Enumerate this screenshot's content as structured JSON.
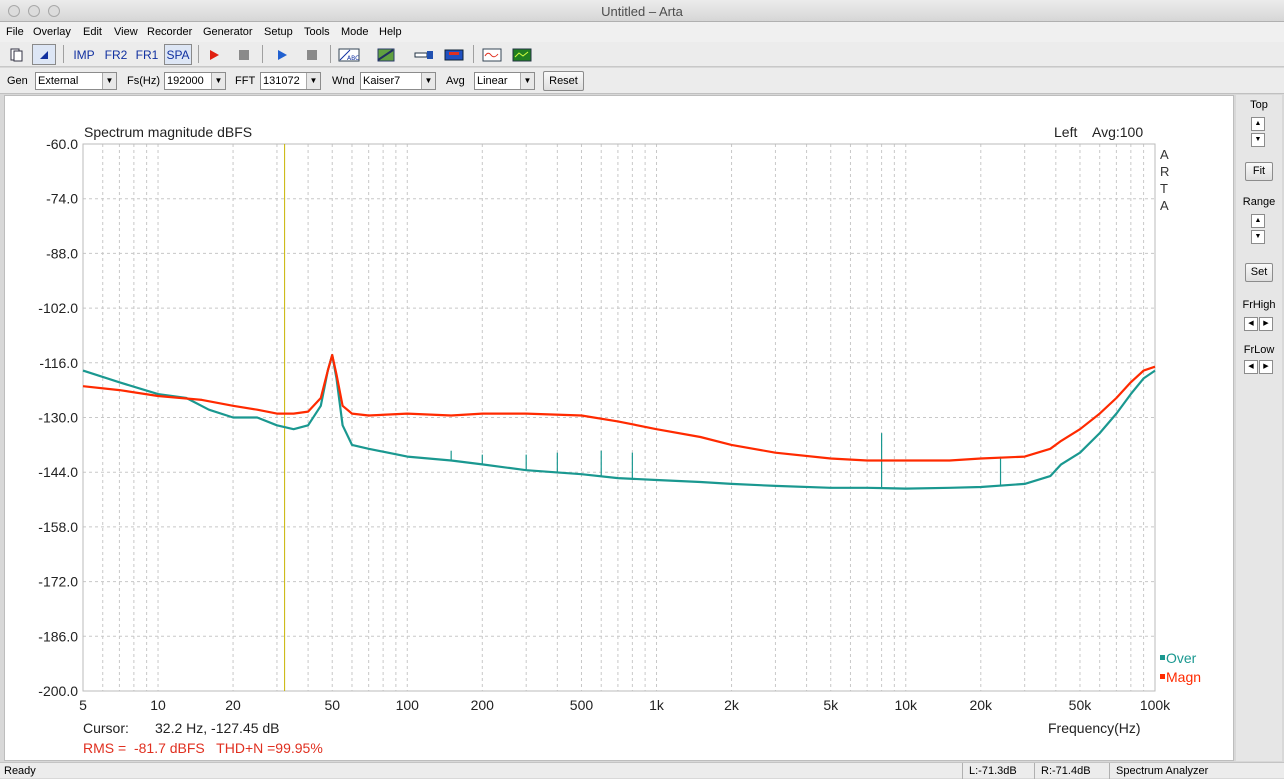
{
  "window": {
    "title": "Untitled – Arta"
  },
  "menu": [
    "File",
    "Overlay",
    "Edit",
    "View",
    "Recorder",
    "Generator",
    "Setup",
    "Tools",
    "Mode",
    "Help"
  ],
  "toolbar": {
    "imp": "IMP",
    "fr2": "FR2",
    "fr1": "FR1",
    "spa": "SPA"
  },
  "controls": {
    "gen_label": "Gen",
    "gen_value": "External",
    "fs_label": "Fs(Hz)",
    "fs_value": "192000",
    "fft_label": "FFT",
    "fft_value": "131072",
    "wnd_label": "Wnd",
    "wnd_value": "Kaiser7",
    "avg_label": "Avg",
    "avg_value": "Linear",
    "reset_label": "Reset"
  },
  "side": {
    "top": "Top",
    "fit": "Fit",
    "range": "Range",
    "set": "Set",
    "frhigh": "FrHigh",
    "frlow": "FrLow"
  },
  "plot": {
    "arta": [
      "A",
      "R",
      "T",
      "A"
    ],
    "cursor_label": "Cursor:",
    "cursor_value": "32.2 Hz, -127.45 dB",
    "rms_text": "RMS =  -81.7 dBFS   THD+N =99.95%",
    "cursor_hz": 32.2
  },
  "status": {
    "ready": "Ready",
    "left": "L:-71.3dB",
    "right": "R:-71.4dB",
    "mode": "Spectrum Analyzer"
  },
  "colors": {
    "magn": "#ff2a00",
    "over": "#1a9890",
    "cursor": "#c8b400",
    "grid": "#c8c8c8",
    "rms": "#e03020"
  },
  "chart_data": {
    "type": "line",
    "title": "Spectrum magnitude dBFS",
    "channel": "Left",
    "avg_text": "Avg:100",
    "xlabel": "Frequency(Hz)",
    "x_scale": "log",
    "xlim": [
      5,
      100000
    ],
    "ylim": [
      -200,
      -60
    ],
    "x_ticks": [
      5,
      10,
      20,
      50,
      100,
      200,
      500,
      1000,
      2000,
      5000,
      10000,
      20000,
      50000,
      100000
    ],
    "x_tick_labels": [
      "5",
      "10",
      "20",
      "50",
      "100",
      "200",
      "500",
      "1k",
      "2k",
      "5k",
      "10k",
      "20k",
      "50k",
      "100k"
    ],
    "y_ticks": [
      -60,
      -74,
      -88,
      -102,
      -116,
      -130,
      -144,
      -158,
      -172,
      -186,
      -200
    ],
    "y_tick_labels": [
      "-60.0",
      "-74.0",
      "-88.0",
      "-102.0",
      "-116.0",
      "-130.0",
      "-144.0",
      "-158.0",
      "-172.0",
      "-186.0",
      "-200.0"
    ],
    "grid": true,
    "legend_position": "bottom-right",
    "series": [
      {
        "name": "Over",
        "color": "#1a9890",
        "x": [
          5,
          7,
          10,
          13,
          16,
          20,
          25,
          30,
          35,
          40,
          45,
          48,
          50,
          52,
          55,
          60,
          70,
          100,
          150,
          200,
          300,
          500,
          700,
          1000,
          1500,
          2000,
          3000,
          5000,
          7000,
          10000,
          15000,
          20000,
          30000,
          38000,
          42000,
          50000,
          60000,
          70000,
          80000,
          90000,
          100000
        ],
        "y": [
          -118,
          -121,
          -124,
          -125,
          -128,
          -130,
          -130,
          -132,
          -133,
          -132,
          -127,
          -118,
          -114,
          -120,
          -132,
          -137,
          -138,
          -140,
          -141,
          -142,
          -143.5,
          -144.5,
          -145.5,
          -146,
          -146.5,
          -147,
          -147.5,
          -148,
          -148,
          -148.2,
          -148,
          -147.8,
          -147,
          -145,
          -142,
          -139,
          -134,
          -129,
          -124,
          -120,
          -118
        ]
      },
      {
        "name": "Magn",
        "color": "#ff2a00",
        "x": [
          5,
          7,
          10,
          15,
          20,
          25,
          30,
          35,
          40,
          45,
          48,
          50,
          52,
          55,
          60,
          70,
          100,
          150,
          200,
          300,
          500,
          700,
          1000,
          1500,
          2000,
          3000,
          5000,
          7000,
          10000,
          15000,
          20000,
          30000,
          38000,
          42000,
          50000,
          60000,
          70000,
          80000,
          90000,
          100000
        ],
        "y": [
          -122,
          -123,
          -124.5,
          -125.5,
          -127,
          -128,
          -129,
          -129,
          -128.5,
          -125,
          -118,
          -114,
          -119,
          -127,
          -129,
          -129.5,
          -129,
          -129.5,
          -129,
          -129,
          -129.5,
          -131,
          -133,
          -135,
          -137,
          -139,
          -140.5,
          -141,
          -141,
          -141,
          -140.5,
          -140,
          -138,
          -136,
          -133,
          -129,
          -125,
          -121,
          -118,
          -117
        ]
      }
    ],
    "spikes": [
      {
        "x": 150,
        "y": -138.5,
        "base": -141
      },
      {
        "x": 200,
        "y": -139.5,
        "base": -142
      },
      {
        "x": 300,
        "y": -139.5,
        "base": -143.5
      },
      {
        "x": 400,
        "y": -139,
        "base": -144
      },
      {
        "x": 600,
        "y": -138.5,
        "base": -145
      },
      {
        "x": 800,
        "y": -139,
        "base": -145.5
      },
      {
        "x": 8000,
        "y": -134,
        "base": -148
      },
      {
        "x": 24000,
        "y": -140,
        "base": -147.5
      }
    ]
  }
}
